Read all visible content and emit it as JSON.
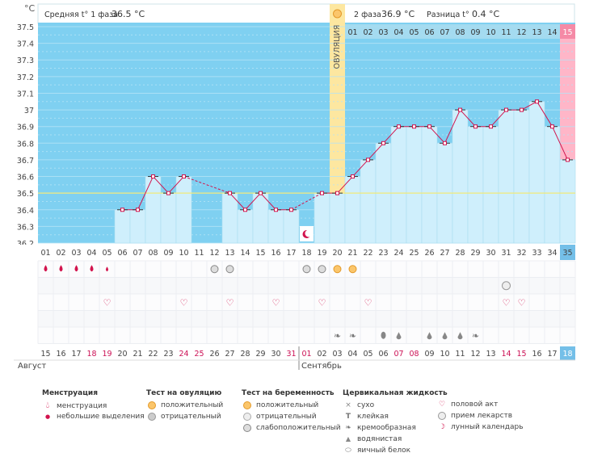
{
  "header": {
    "unit": "°C",
    "phase1_label": "Средняя t° 1 фаза",
    "phase1_value": "36.5 °C",
    "phase2_label": "2 фаза",
    "phase2_value": "36.9 °C",
    "diff_label": "Разница t°",
    "diff_value": "0.4 °C",
    "ovulation_label": "ОВУЛЯЦИЯ"
  },
  "chart_data": {
    "type": "line",
    "title": "Базальная температура",
    "ylabel": "°C",
    "ylim": [
      36.2,
      37.5
    ],
    "y_ticks": [
      "36.2",
      "36.3",
      "36.4",
      "36.5",
      "36.6",
      "36.7",
      "36.8",
      "36.9",
      "37",
      "37.1",
      "37.2",
      "37.3",
      "37.4",
      "37.5"
    ],
    "cycle_days": [
      "01",
      "02",
      "03",
      "04",
      "05",
      "06",
      "07",
      "08",
      "09",
      "10",
      "11",
      "12",
      "13",
      "14",
      "15",
      "16",
      "17",
      "18",
      "19",
      "20",
      "21",
      "22",
      "23",
      "24",
      "25",
      "26",
      "27",
      "28",
      "29",
      "30",
      "31",
      "32",
      "33",
      "34",
      "35"
    ],
    "dates": [
      "15",
      "16",
      "17",
      "18",
      "19",
      "20",
      "21",
      "22",
      "23",
      "24",
      "25",
      "26",
      "27",
      "28",
      "29",
      "30",
      "31",
      "01",
      "02",
      "03",
      "04",
      "05",
      "06",
      "07",
      "08",
      "09",
      "10",
      "11",
      "12",
      "13",
      "14",
      "15",
      "16",
      "17",
      "18"
    ],
    "red_dates": [
      3,
      4,
      9,
      10,
      16,
      17,
      23,
      24,
      30,
      31
    ],
    "months": [
      "Август",
      "Сентябрь"
    ],
    "phase2_day_labels": [
      "01",
      "02",
      "03",
      "04",
      "05",
      "06",
      "07",
      "08",
      "09",
      "10",
      "11",
      "12",
      "13",
      "14",
      "15"
    ],
    "temperatures": [
      null,
      null,
      null,
      null,
      null,
      36.4,
      36.4,
      36.6,
      36.5,
      36.6,
      null,
      null,
      36.5,
      36.4,
      36.5,
      36.4,
      36.4,
      null,
      36.5,
      36.5,
      36.6,
      36.7,
      36.8,
      36.9,
      36.9,
      36.9,
      36.8,
      37.0,
      36.9,
      36.9,
      37.0,
      37.0,
      37.05,
      36.9,
      36.7
    ],
    "ovulation_day": 20,
    "cover_line": 36.5,
    "menstruation_days": [
      1,
      2,
      3,
      4,
      5
    ],
    "ovulation_test_negative_days": [
      12,
      13,
      18,
      19
    ],
    "ovulation_test_positive_days": [
      20,
      21
    ],
    "pregnancy_test_negative_days": [
      31
    ],
    "intercourse_days": [
      5,
      10,
      13,
      16,
      19,
      22,
      31,
      32
    ],
    "fluid_creamy_days": [
      20,
      21,
      29
    ],
    "fluid_watery_days": [
      24,
      26,
      27,
      28
    ],
    "fluid_eggwhite_days": [
      23
    ],
    "fluid_sticky_days": [],
    "fluid_dry_days": [],
    "moon_days": [
      18
    ]
  },
  "legend": {
    "menstruation": {
      "title": "Менструация",
      "items": [
        "менструация",
        "небольшие выделения"
      ]
    },
    "ovulation_test": {
      "title": "Тест на овуляцию",
      "items": [
        "положительный",
        "отрицательный"
      ]
    },
    "pregnancy_test": {
      "title": "Тест на беременность",
      "items": [
        "положительный",
        "отрицательный",
        "слабоположительный"
      ]
    },
    "cervical_fluid": {
      "title": "Цервикальная жидкость",
      "items": [
        "сухо",
        "клейкая",
        "кремообразная",
        "водянистая",
        "яичный белок"
      ]
    },
    "other": {
      "items": [
        "половой акт",
        "прием лекарств",
        "лунный календарь"
      ]
    }
  },
  "colors": {
    "sky": "#7fd0f1",
    "column": "#cfeffc",
    "column_edge": "#a9dcf1",
    "ovulation": "#fde7a0",
    "luteal_end": "#ffb6c8",
    "line": "#d2134d",
    "cover": "#f2ea7a",
    "red_text": "#cc1155"
  }
}
